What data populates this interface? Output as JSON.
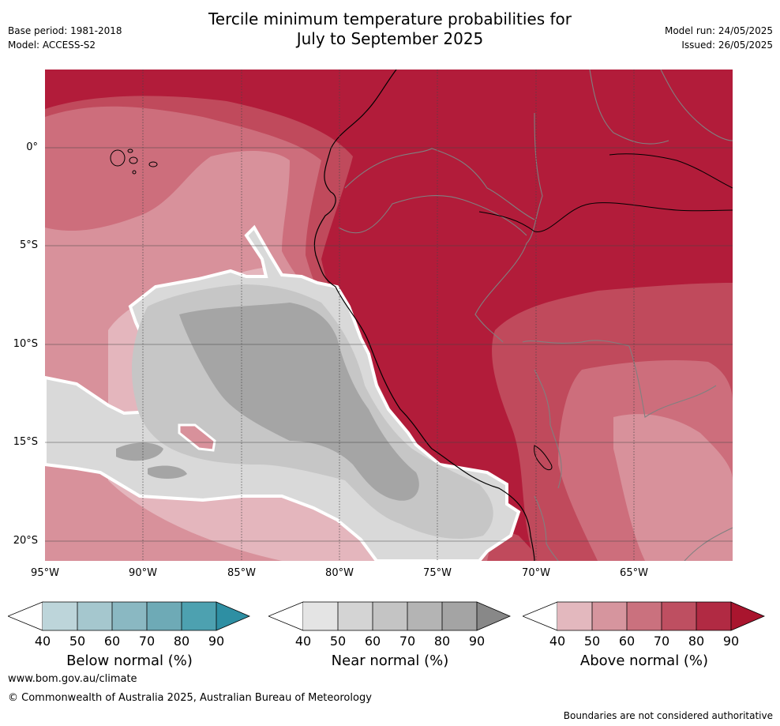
{
  "header": {
    "title_line1": "Tercile minimum temperature probabilities for",
    "title_line2": "July to September 2025",
    "base_period": "Base period: 1981-2018",
    "model": "Model: ACCESS-S2",
    "model_run": "Model run: 24/05/2025",
    "issued": "Issued: 26/05/2025"
  },
  "map": {
    "lat_labels": [
      "0°",
      "5°S",
      "10°S",
      "15°S",
      "20°S"
    ],
    "lon_labels": [
      "95°W",
      "90°W",
      "85°W",
      "80°W",
      "75°W",
      "70°W",
      "65°W"
    ],
    "colors": {
      "ocean_above_dark": "#b21c3a",
      "above_80": "#c04a5c",
      "above_70": "#cd6e7c",
      "above_60": "#d8919b",
      "above_50": "#e4b6bd",
      "near_50": "#d9d9d9",
      "near_60": "#c6c6c6",
      "near_70": "#b4b4b4",
      "near_80": "#a5a5a5"
    }
  },
  "colorbars": {
    "ticks": [
      "40",
      "50",
      "60",
      "70",
      "80",
      "90"
    ],
    "below": {
      "label": "Below normal (%)",
      "colors": [
        "#bdd5da",
        "#a5c7ce",
        "#8ab8c2",
        "#6eaab6",
        "#4da1b0",
        "#2e8fa3"
      ]
    },
    "near": {
      "label": "Near normal (%)",
      "colors": [
        "#e4e4e4",
        "#d4d4d4",
        "#c4c4c4",
        "#b4b4b4",
        "#a4a4a4",
        "#888888"
      ]
    },
    "above": {
      "label": "Above normal (%)",
      "colors": [
        "#e3b8be",
        "#d6959e",
        "#ca717e",
        "#be4f61",
        "#b12a43",
        "#a9152e"
      ]
    }
  },
  "footer": {
    "website": "www.bom.gov.au/climate",
    "copyright": "© Commonwealth of Australia 2025, Australian Bureau of Meteorology",
    "disclaimer": "Boundaries are not considered authoritative"
  }
}
